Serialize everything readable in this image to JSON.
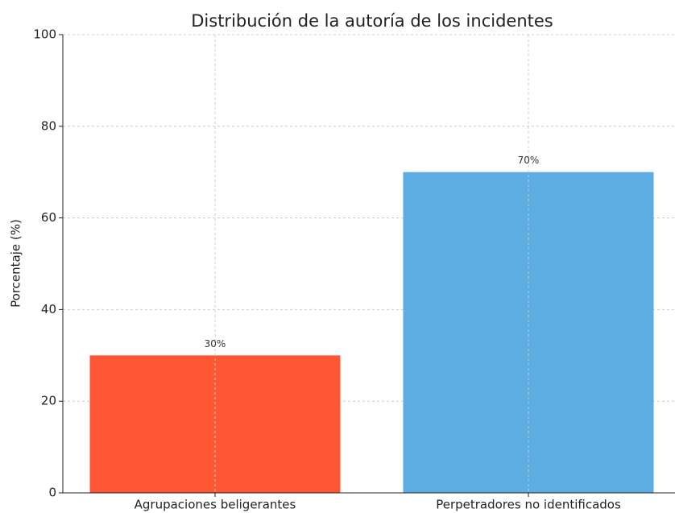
{
  "chart_data": {
    "type": "bar",
    "title": "Distribución de la autoría de los incidentes",
    "ylabel": "Porcentaje (%)",
    "categories": [
      "Agrupaciones beligerantes",
      "Perpetradores no identificados"
    ],
    "values": [
      30,
      70
    ],
    "value_labels": [
      "30%",
      "70%"
    ],
    "colors": [
      "#ff5733",
      "#5dade2"
    ],
    "ylim": [
      0,
      100
    ],
    "yticks": [
      0,
      20,
      40,
      60,
      80,
      100
    ],
    "grid": true
  }
}
